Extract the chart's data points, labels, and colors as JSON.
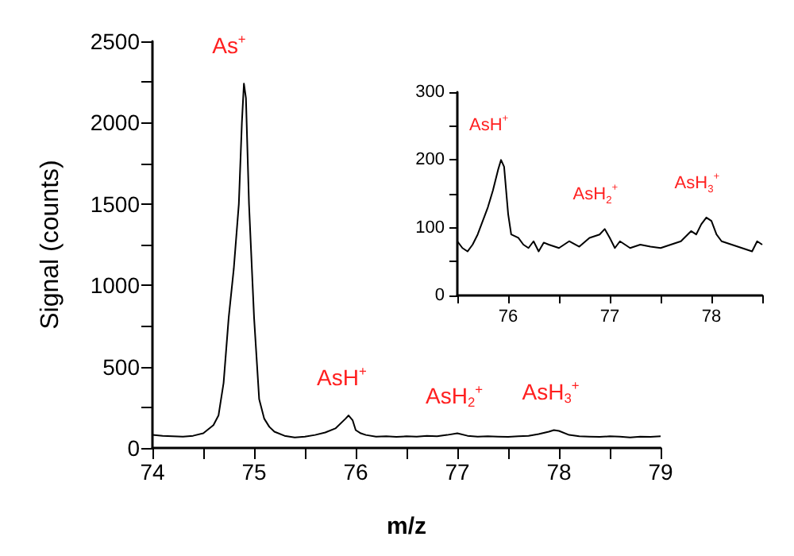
{
  "chart_data": [
    {
      "type": "line",
      "xlabel": "m/z",
      "ylabel": "Signal (counts)",
      "marker": "none",
      "line_style": "solid",
      "grid": false,
      "xlim": [
        74,
        79
      ],
      "xticks": [
        74,
        {
          "value": 74.5,
          "label": null
        },
        75,
        {
          "value": 75.5,
          "label": null
        },
        76,
        {
          "value": 76.5,
          "label": null
        },
        77,
        {
          "value": 77.5,
          "label": null
        },
        78,
        {
          "value": 78.5,
          "label": null
        },
        79
      ],
      "ylim": [
        0,
        2500
      ],
      "yticks": [
        0,
        {
          "value": 250,
          "label": null
        },
        500,
        {
          "value": 750,
          "label": null
        },
        1000,
        {
          "value": 1250,
          "label": null
        },
        1500,
        {
          "value": 1750,
          "label": null
        },
        2000,
        {
          "value": 2250,
          "label": null
        },
        2500
      ],
      "series": [
        {
          "color": "#000000",
          "x": [
            74.0,
            74.1,
            74.2,
            74.3,
            74.4,
            74.5,
            74.6,
            74.65,
            74.7,
            74.75,
            74.8,
            74.85,
            74.88,
            74.9,
            74.92,
            74.95,
            75.0,
            75.05,
            75.1,
            75.15,
            75.2,
            75.3,
            75.4,
            75.5,
            75.6,
            75.7,
            75.8,
            75.9,
            75.93,
            75.97,
            76.0,
            76.05,
            76.1,
            76.2,
            76.3,
            76.4,
            76.5,
            76.6,
            76.7,
            76.8,
            76.9,
            77.0,
            77.1,
            77.2,
            77.3,
            77.4,
            77.5,
            77.6,
            77.7,
            77.8,
            77.9,
            77.95,
            78.0,
            78.1,
            78.2,
            78.3,
            78.4,
            78.5,
            78.6,
            78.7,
            78.8,
            78.9,
            79.0
          ],
          "values": [
            80,
            75,
            72,
            70,
            75,
            90,
            140,
            200,
            400,
            800,
            1100,
            1500,
            2000,
            2240,
            2150,
            1500,
            800,
            300,
            180,
            130,
            100,
            75,
            65,
            70,
            80,
            95,
            120,
            180,
            200,
            170,
            110,
            90,
            80,
            70,
            72,
            68,
            72,
            70,
            75,
            72,
            80,
            90,
            75,
            70,
            72,
            70,
            68,
            72,
            75,
            85,
            100,
            110,
            105,
            80,
            72,
            70,
            68,
            72,
            70,
            65,
            70,
            68,
            72
          ]
        }
      ],
      "annotations": [
        {
          "text": "As$^{+}$",
          "x": 74.9,
          "y": 2240
        },
        {
          "text": "AsH$^{+}$",
          "x": 75.93,
          "y": 200
        },
        {
          "text": "AsH$_{2}$$^{+}$",
          "x": 77.0,
          "y": 90
        },
        {
          "text": "AsH$_{3}$$^{+}$",
          "x": 77.95,
          "y": 110
        }
      ]
    },
    {
      "type": "line",
      "marker": "none",
      "line_style": "solid",
      "grid": false,
      "xlim": [
        75.5,
        78.5
      ],
      "xticks": [
        {
          "value": 75.5,
          "label": null
        },
        76,
        {
          "value": 76.5,
          "label": null
        },
        77,
        {
          "value": 77.5,
          "label": null
        },
        78,
        {
          "value": 78.5,
          "label": null
        }
      ],
      "ylim": [
        0,
        300
      ],
      "yticks": [
        0,
        {
          "value": 50,
          "label": null
        },
        100,
        {
          "value": 150,
          "label": null
        },
        200,
        {
          "value": 250,
          "label": null
        },
        300
      ],
      "series": [
        {
          "color": "#000000",
          "x": [
            75.5,
            75.55,
            75.6,
            75.65,
            75.7,
            75.75,
            75.8,
            75.85,
            75.9,
            75.93,
            75.96,
            76.0,
            76.03,
            76.1,
            76.15,
            76.2,
            76.25,
            76.3,
            76.35,
            76.4,
            76.5,
            76.6,
            76.7,
            76.8,
            76.9,
            76.95,
            77.0,
            77.05,
            77.1,
            77.2,
            77.3,
            77.4,
            77.5,
            77.6,
            77.7,
            77.8,
            77.85,
            77.9,
            77.95,
            78.0,
            78.05,
            78.1,
            78.2,
            78.3,
            78.4,
            78.45,
            78.5
          ],
          "values": [
            80,
            70,
            65,
            75,
            90,
            110,
            130,
            155,
            185,
            200,
            190,
            120,
            90,
            85,
            75,
            70,
            80,
            65,
            78,
            75,
            70,
            80,
            72,
            85,
            90,
            98,
            85,
            70,
            80,
            70,
            75,
            72,
            70,
            75,
            80,
            95,
            90,
            105,
            115,
            110,
            90,
            80,
            75,
            70,
            65,
            80,
            75
          ]
        }
      ],
      "annotations": [
        {
          "text": "AsH$^{+}$",
          "x": 75.93,
          "y": 200
        },
        {
          "text": "AsH$_{2}$$^{+}$",
          "x": 76.95,
          "y": 98
        },
        {
          "text": "AsH$_{3}$$^{+}$",
          "x": 77.95,
          "y": 115
        }
      ]
    }
  ]
}
